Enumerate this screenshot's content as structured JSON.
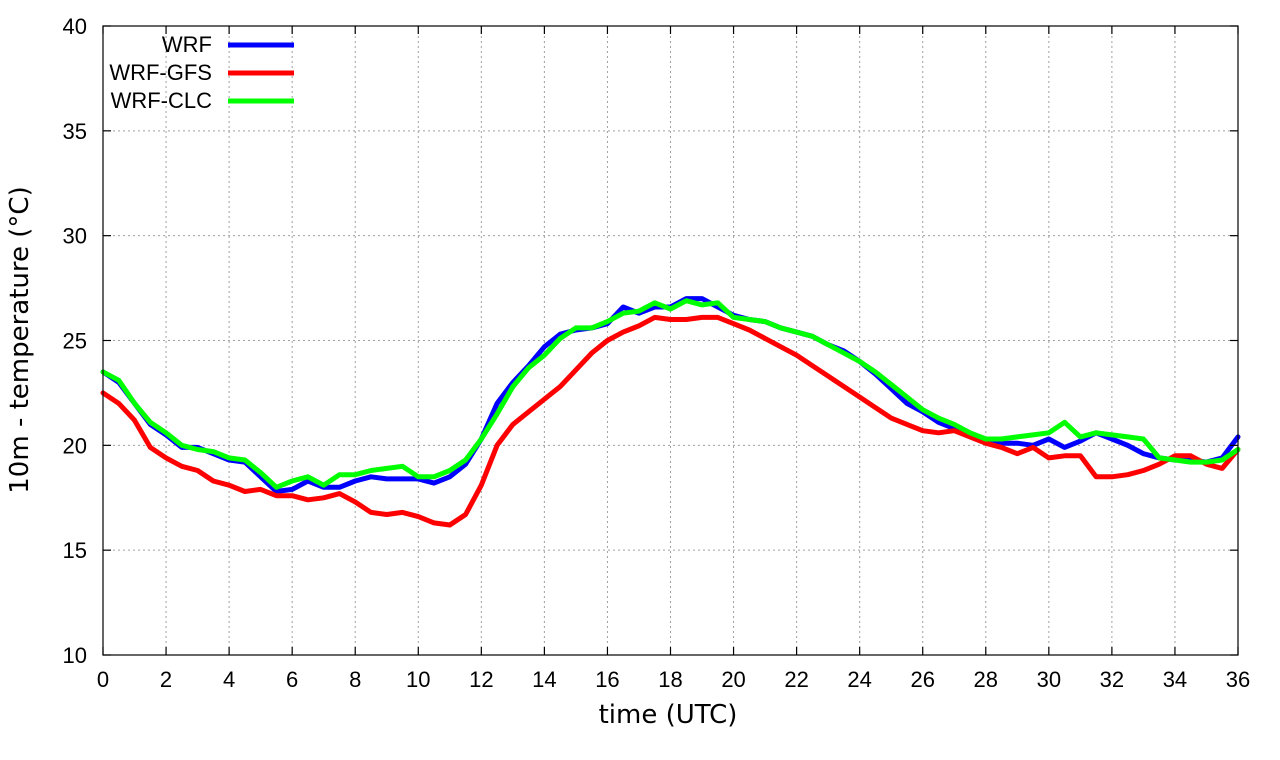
{
  "chart_data": {
    "type": "line",
    "title": "",
    "xlabel": "time (UTC)",
    "ylabel": "10m - temperature (°C)",
    "xlim": [
      0,
      36
    ],
    "ylim": [
      10,
      40
    ],
    "xticks": [
      0,
      2,
      4,
      6,
      8,
      10,
      12,
      14,
      16,
      18,
      20,
      22,
      24,
      26,
      28,
      30,
      32,
      34,
      36
    ],
    "yticks": [
      10,
      15,
      20,
      25,
      30,
      35,
      40
    ],
    "grid": true,
    "legend_position": "top-left",
    "x": [
      0,
      0.5,
      1,
      1.5,
      2,
      2.5,
      3,
      3.5,
      4,
      4.5,
      5,
      5.5,
      6,
      6.5,
      7,
      7.5,
      8,
      8.5,
      9,
      9.5,
      10,
      10.5,
      11,
      11.5,
      12,
      12.5,
      13,
      13.5,
      14,
      14.5,
      15,
      15.5,
      16,
      16.5,
      17,
      17.5,
      18,
      18.5,
      19,
      19.5,
      20,
      20.5,
      21,
      21.5,
      22,
      22.5,
      23,
      23.5,
      24,
      24.5,
      25,
      25.5,
      26,
      26.5,
      27,
      27.5,
      28,
      28.5,
      29,
      29.5,
      30,
      30.5,
      31,
      31.5,
      32,
      32.5,
      33,
      33.5,
      34,
      34.5,
      35,
      35.5,
      36
    ],
    "series": [
      {
        "name": "WRF",
        "color": "#0000ff",
        "values": [
          23.5,
          23.0,
          22.0,
          21.0,
          20.5,
          19.9,
          19.9,
          19.6,
          19.3,
          19.2,
          18.5,
          17.8,
          17.9,
          18.3,
          18.0,
          18.0,
          18.3,
          18.5,
          18.4,
          18.4,
          18.4,
          18.2,
          18.5,
          19.1,
          20.3,
          22.0,
          23.0,
          23.8,
          24.7,
          25.3,
          25.5,
          25.6,
          25.8,
          26.6,
          26.3,
          26.6,
          26.6,
          27.0,
          27.0,
          26.6,
          26.2,
          26.0,
          25.9,
          25.6,
          25.4,
          25.2,
          24.8,
          24.5,
          24.0,
          23.4,
          22.7,
          22.0,
          21.6,
          21.1,
          20.8,
          20.5,
          20.2,
          20.1,
          20.1,
          20.0,
          20.3,
          19.9,
          20.2,
          20.6,
          20.3,
          20.0,
          19.6,
          19.4,
          19.3,
          19.3,
          19.2,
          19.4,
          20.4
        ]
      },
      {
        "name": "WRF-GFS",
        "color": "#ff0000",
        "values": [
          22.5,
          22.0,
          21.2,
          19.9,
          19.4,
          19.0,
          18.8,
          18.3,
          18.1,
          17.8,
          17.9,
          17.6,
          17.6,
          17.4,
          17.5,
          17.7,
          17.3,
          16.8,
          16.7,
          16.8,
          16.6,
          16.3,
          16.2,
          16.7,
          18.1,
          20.0,
          21.0,
          21.6,
          22.2,
          22.8,
          23.6,
          24.4,
          25.0,
          25.4,
          25.7,
          26.1,
          26.0,
          26.0,
          26.1,
          26.1,
          25.8,
          25.5,
          25.1,
          24.7,
          24.3,
          23.8,
          23.3,
          22.8,
          22.3,
          21.8,
          21.3,
          21.0,
          20.7,
          20.6,
          20.7,
          20.4,
          20.1,
          19.9,
          19.6,
          19.9,
          19.4,
          19.5,
          19.5,
          18.5,
          18.5,
          18.6,
          18.8,
          19.1,
          19.5,
          19.5,
          19.1,
          18.9,
          19.8
        ]
      },
      {
        "name": "WRF-CLC",
        "color": "#00ff00",
        "values": [
          23.5,
          23.1,
          22.0,
          21.1,
          20.6,
          20.0,
          19.8,
          19.7,
          19.4,
          19.3,
          18.7,
          18.0,
          18.3,
          18.5,
          18.1,
          18.6,
          18.6,
          18.8,
          18.9,
          19.0,
          18.5,
          18.5,
          18.8,
          19.3,
          20.3,
          21.5,
          22.8,
          23.7,
          24.3,
          25.1,
          25.6,
          25.6,
          25.9,
          26.3,
          26.4,
          26.8,
          26.5,
          26.9,
          26.7,
          26.8,
          26.1,
          26.0,
          25.9,
          25.6,
          25.4,
          25.2,
          24.8,
          24.4,
          24.0,
          23.5,
          22.9,
          22.3,
          21.7,
          21.3,
          21.0,
          20.6,
          20.3,
          20.3,
          20.4,
          20.5,
          20.6,
          21.1,
          20.4,
          20.6,
          20.5,
          20.4,
          20.3,
          19.4,
          19.3,
          19.2,
          19.2,
          19.3,
          19.8
        ]
      }
    ]
  }
}
